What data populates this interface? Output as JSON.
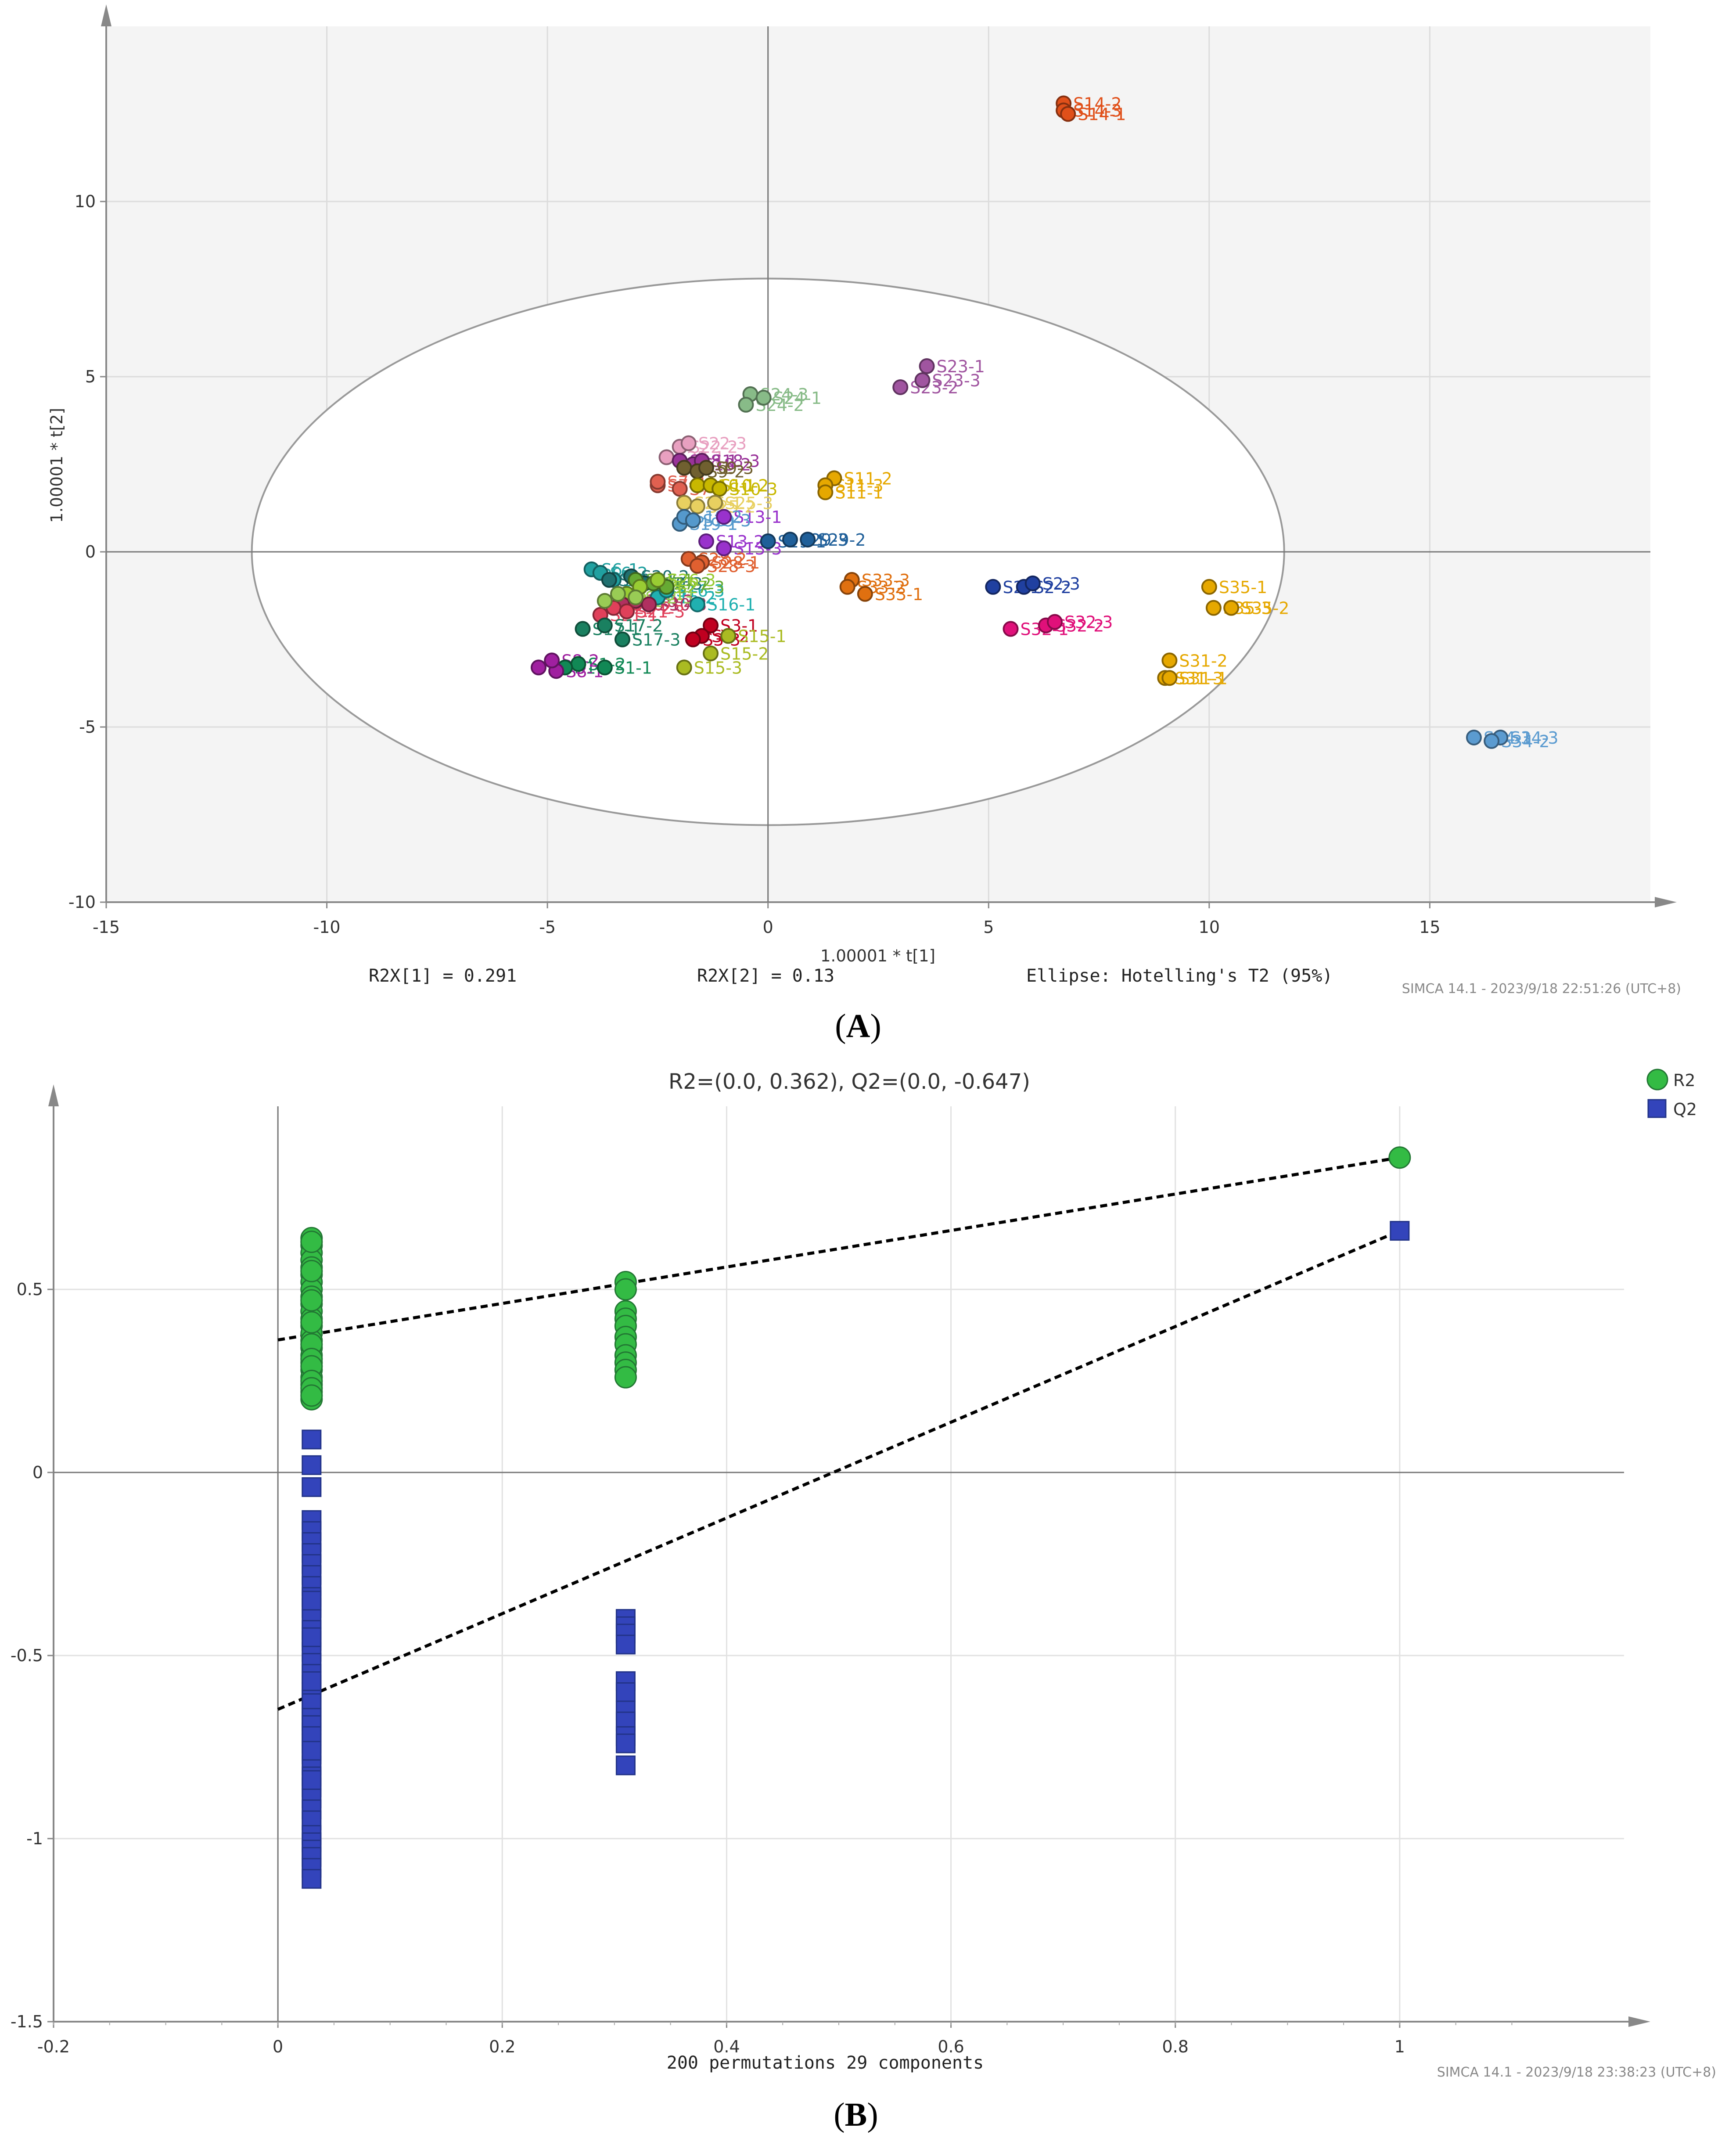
{
  "chart_data": [
    {
      "type": "scatter",
      "panel_label": "A",
      "xlabel": "1.00001 * t[1]",
      "ylabel": "1.00001 * t[2]",
      "xlim": [
        -15,
        20
      ],
      "ylim": [
        -10,
        15
      ],
      "xticks": [
        -15,
        -10,
        -5,
        0,
        5,
        10,
        15
      ],
      "yticks": [
        -10,
        -5,
        0,
        5,
        10
      ],
      "stats": [
        "R2X[1] = 0.291",
        "R2X[2] = 0.13",
        "Ellipse: Hotelling's T2 (95%)"
      ],
      "footer": "SIMCA 14.1 - 2023/9/18 22:51:26 (UTC+8)",
      "ellipse": {
        "rx": 11.7,
        "ry": 7.8
      },
      "groups": [
        {
          "name": "S14",
          "color": "#e0501a",
          "labels": [
            "S14-2",
            "S14-3",
            "S14-1"
          ],
          "points": [
            [
              6.7,
              12.8
            ],
            [
              6.7,
              12.6
            ],
            [
              6.8,
              12.5
            ]
          ]
        },
        {
          "name": "S34",
          "color": "#5b9bd0",
          "labels": [
            "S34-1",
            "S34-3",
            "S34-2"
          ],
          "points": [
            [
              16.0,
              -5.3
            ],
            [
              16.6,
              -5.3
            ],
            [
              16.4,
              -5.4
            ]
          ]
        },
        {
          "name": "S23",
          "color": "#a055a0",
          "labels": [
            "S23-1",
            "S23-3",
            "S23-2"
          ],
          "points": [
            [
              3.6,
              5.3
            ],
            [
              3.5,
              4.9
            ],
            [
              3.0,
              4.7
            ]
          ]
        },
        {
          "name": "S24",
          "color": "#88bb88",
          "labels": [
            "S24-3",
            "S24-1",
            "S24-2"
          ],
          "points": [
            [
              -0.4,
              4.5
            ],
            [
              -0.1,
              4.4
            ],
            [
              -0.5,
              4.2
            ]
          ]
        },
        {
          "name": "S11",
          "color": "#e6a800",
          "labels": [
            "S11-2",
            "S11-3",
            "S11-1"
          ],
          "points": [
            [
              1.5,
              2.1
            ],
            [
              1.3,
              1.9
            ],
            [
              1.3,
              1.7
            ]
          ]
        },
        {
          "name": "S35",
          "color": "#e6a800",
          "labels": [
            "S35-1",
            "S35-3",
            "S35-2"
          ],
          "points": [
            [
              10.0,
              -1.0
            ],
            [
              10.1,
              -1.6
            ],
            [
              10.5,
              -1.6
            ]
          ]
        },
        {
          "name": "S31",
          "color": "#e6a800",
          "labels": [
            "S31-2",
            "S31-3",
            "S31-1"
          ],
          "points": [
            [
              9.1,
              -3.1
            ],
            [
              9.0,
              -3.6
            ],
            [
              9.1,
              -3.6
            ]
          ]
        },
        {
          "name": "S33",
          "color": "#e07010",
          "labels": [
            "S33-3",
            "S33-2",
            "S33-1"
          ],
          "points": [
            [
              1.9,
              -0.8
            ],
            [
              1.8,
              -1.0
            ],
            [
              2.2,
              -1.2
            ]
          ]
        },
        {
          "name": "S2",
          "color": "#2040a0",
          "labels": [
            "S2-1",
            "S2-2",
            "S2-3"
          ],
          "points": [
            [
              5.1,
              -1.0
            ],
            [
              5.8,
              -1.0
            ],
            [
              6.0,
              -0.9
            ]
          ]
        },
        {
          "name": "S32",
          "color": "#e0107a",
          "labels": [
            "S32-1",
            "S32-2",
            "S32-3"
          ],
          "points": [
            [
              5.5,
              -2.2
            ],
            [
              6.3,
              -2.1
            ],
            [
              6.5,
              -2.0
            ]
          ]
        },
        {
          "name": "S29",
          "color": "#1f5f99",
          "labels": [
            "S29-1",
            "S29-3",
            "S29-2"
          ],
          "points": [
            [
              0.0,
              0.3
            ],
            [
              0.5,
              0.35
            ],
            [
              0.9,
              0.35
            ]
          ]
        },
        {
          "name": "S13",
          "color": "#9932cc",
          "labels": [
            "S13-1",
            "S13-2",
            "S13-3"
          ],
          "points": [
            [
              -1.0,
              1.0
            ],
            [
              -1.4,
              0.3
            ],
            [
              -1.0,
              0.1
            ]
          ]
        },
        {
          "name": "S22",
          "color": "#e8a0c0",
          "labels": [
            "S22-2",
            "S22-1",
            "S22-3"
          ],
          "points": [
            [
              -2.0,
              3.0
            ],
            [
              -2.3,
              2.7
            ],
            [
              -1.8,
              3.1
            ]
          ]
        },
        {
          "name": "S18",
          "color": "#993399",
          "labels": [
            "S18-1",
            "S18-2",
            "S18-3"
          ],
          "points": [
            [
              -2.0,
              2.6
            ],
            [
              -1.7,
              2.5
            ],
            [
              -1.5,
              2.6
            ]
          ]
        },
        {
          "name": "S9",
          "color": "#706030",
          "labels": [
            "S9-1",
            "S9-2",
            "S9-3"
          ],
          "points": [
            [
              -1.9,
              2.4
            ],
            [
              -1.6,
              2.3
            ],
            [
              -1.4,
              2.4
            ]
          ]
        },
        {
          "name": "S7",
          "color": "#e06050",
          "labels": [
            "S7-1",
            "S7-2",
            "S7-3"
          ],
          "points": [
            [
              -2.5,
              1.9
            ],
            [
              -2.5,
              2.0
            ],
            [
              -2.0,
              1.8
            ]
          ]
        },
        {
          "name": "S10",
          "color": "#c8b800",
          "labels": [
            "S10-1",
            "S10-2",
            "S10-3"
          ],
          "points": [
            [
              -1.6,
              1.9
            ],
            [
              -1.3,
              1.9
            ],
            [
              -1.1,
              1.8
            ]
          ]
        },
        {
          "name": "S25",
          "color": "#e8d060",
          "labels": [
            "S25-1",
            "S25-2",
            "S25-3"
          ],
          "points": [
            [
              -1.9,
              1.4
            ],
            [
              -1.6,
              1.3
            ],
            [
              -1.2,
              1.4
            ]
          ]
        },
        {
          "name": "S19",
          "color": "#5599cc",
          "labels": [
            "S19-1",
            "S19-2",
            "S19-3"
          ],
          "points": [
            [
              -2.0,
              0.8
            ],
            [
              -1.9,
              1.0
            ],
            [
              -1.7,
              0.9
            ]
          ]
        },
        {
          "name": "S28",
          "color": "#e06030",
          "labels": [
            "S28-1",
            "S28-2",
            "S28-3"
          ],
          "points": [
            [
              -1.5,
              -0.3
            ],
            [
              -1.8,
              -0.2
            ],
            [
              -1.6,
              -0.4
            ]
          ]
        },
        {
          "name": "S16",
          "color": "#20b0b0",
          "labels": [
            "S16-1",
            "S16-2",
            "S16-3"
          ],
          "points": [
            [
              -1.6,
              -1.5
            ],
            [
              -2.5,
              -1.3
            ],
            [
              -2.3,
              -1.1
            ]
          ]
        },
        {
          "name": "S6",
          "color": "#20a0a0",
          "labels": [
            "S6-1",
            "S6-2",
            "S6-3"
          ],
          "points": [
            [
              -4.0,
              -0.5
            ],
            [
              -3.8,
              -0.6
            ],
            [
              -3.5,
              -0.8
            ]
          ]
        },
        {
          "name": "S20",
          "color": "#207070",
          "labels": [
            "S20-1",
            "S20-2",
            "S20-3"
          ],
          "points": [
            [
              -3.6,
              -0.8
            ],
            [
              -3.1,
              -0.7
            ],
            [
              -2.8,
              -0.9
            ]
          ]
        },
        {
          "name": "S27",
          "color": "#66aa33",
          "labels": [
            "S27-1",
            "S27-2",
            "S27-3"
          ],
          "points": [
            [
              -3.0,
              -0.8
            ],
            [
              -2.6,
              -0.9
            ],
            [
              -2.3,
              -1.0
            ]
          ]
        },
        {
          "name": "S26",
          "color": "#99cc33",
          "labels": [
            "S26-1",
            "S26-2",
            "S26-3"
          ],
          "points": [
            [
              -3.2,
              -1.2
            ],
            [
              -2.9,
              -1.0
            ],
            [
              -2.5,
              -0.8
            ]
          ]
        },
        {
          "name": "S30",
          "color": "#b03060",
          "labels": [
            "S30-1",
            "S30-2",
            "S30-3"
          ],
          "points": [
            [
              -3.3,
              -1.5
            ],
            [
              -3.0,
              -1.4
            ],
            [
              -2.7,
              -1.5
            ]
          ]
        },
        {
          "name": "S21",
          "color": "#e0405a",
          "labels": [
            "S21-1",
            "S21-2",
            "S21-3"
          ],
          "points": [
            [
              -3.8,
              -1.8
            ],
            [
              -3.5,
              -1.6
            ],
            [
              -3.2,
              -1.7
            ]
          ]
        },
        {
          "name": "S12",
          "color": "#99cc55",
          "labels": [
            "S12-1",
            "S12-2",
            "S12-3"
          ],
          "points": [
            [
              -3.7,
              -1.4
            ],
            [
              -3.4,
              -1.2
            ],
            [
              -3.0,
              -1.3
            ]
          ]
        },
        {
          "name": "S17",
          "color": "#1a8060",
          "labels": [
            "S17-1",
            "S17-2",
            "S17-3"
          ],
          "points": [
            [
              -4.2,
              -2.2
            ],
            [
              -3.7,
              -2.1
            ],
            [
              -3.3,
              -2.5
            ]
          ]
        },
        {
          "name": "S1",
          "color": "#118855",
          "labels": [
            "S1-1",
            "S1-2",
            "S1-3"
          ],
          "points": [
            [
              -3.7,
              -3.3
            ],
            [
              -4.3,
              -3.2
            ],
            [
              -4.6,
              -3.3
            ]
          ]
        },
        {
          "name": "S8",
          "color": "#a020a0",
          "labels": [
            "S8-1",
            "S8-2",
            "S8-3"
          ],
          "points": [
            [
              -4.8,
              -3.4
            ],
            [
              -4.9,
              -3.1
            ],
            [
              -5.2,
              -3.3
            ]
          ]
        },
        {
          "name": "S3",
          "color": "#c00020",
          "labels": [
            "S3-1",
            "S3-2",
            "S3-3"
          ],
          "points": [
            [
              -1.3,
              -2.1
            ],
            [
              -1.5,
              -2.4
            ],
            [
              -1.7,
              -2.5
            ]
          ]
        },
        {
          "name": "S15",
          "color": "#aabb22",
          "labels": [
            "S15-1",
            "S15-2",
            "S15-3"
          ],
          "points": [
            [
              -0.9,
              -2.4
            ],
            [
              -1.3,
              -2.9
            ],
            [
              -1.9,
              -3.3
            ]
          ]
        }
      ]
    },
    {
      "type": "scatter",
      "panel_label": "B",
      "title": "R2=(0.0, 0.362), Q2=(0.0, -0.647)",
      "xlabel": "200 permutations 29 components",
      "xlim": [
        -0.2,
        1.2
      ],
      "ylim": [
        -1.5,
        1.0
      ],
      "xticks": [
        -0.2,
        0,
        0.2,
        0.4,
        0.6,
        0.8,
        1
      ],
      "xtick_labels": [
        "-0.2",
        "0",
        "0.2",
        "0.4",
        "0.6",
        "0.8",
        "1"
      ],
      "yticks": [
        -1.5,
        -1,
        -0.5,
        0,
        0.5
      ],
      "ytick_labels": [
        "-1.5",
        "-1",
        "-0.5",
        "0",
        "0.5"
      ],
      "footer": "SIMCA 14.1 - 2023/9/18 23:38:23 (UTC+8)",
      "legend": [
        {
          "name": "R2",
          "marker": "circle",
          "color": "#33bb44"
        },
        {
          "name": "Q2",
          "marker": "square",
          "color": "#3344bb"
        }
      ],
      "r2_x": [
        0.03,
        0.03,
        0.03,
        0.03,
        0.03,
        0.03,
        0.03,
        0.03,
        0.03,
        0.03,
        0.03,
        0.03,
        0.03,
        0.03,
        0.03,
        0.03,
        0.03,
        0.03,
        0.03,
        0.03,
        0.03,
        0.03,
        0.03,
        0.03,
        0.03,
        0.03,
        0.03,
        0.03,
        0.03,
        0.03,
        0.03,
        0.03,
        0.03,
        0.31,
        0.31,
        0.31,
        0.31,
        0.31,
        0.31,
        0.31,
        0.31,
        0.31,
        0.31,
        0.31,
        1.0
      ],
      "r2_y": [
        0.64,
        0.62,
        0.6,
        0.58,
        0.56,
        0.54,
        0.52,
        0.5,
        0.48,
        0.46,
        0.44,
        0.42,
        0.4,
        0.38,
        0.36,
        0.34,
        0.32,
        0.3,
        0.28,
        0.26,
        0.24,
        0.22,
        0.2,
        0.63,
        0.55,
        0.47,
        0.41,
        0.35,
        0.31,
        0.29,
        0.25,
        0.23,
        0.21,
        0.52,
        0.5,
        0.44,
        0.42,
        0.4,
        0.37,
        0.35,
        0.32,
        0.3,
        0.28,
        0.26,
        0.86
      ],
      "q2_x": [
        0.03,
        0.03,
        0.03,
        0.03,
        0.03,
        0.03,
        0.03,
        0.03,
        0.03,
        0.03,
        0.03,
        0.03,
        0.03,
        0.03,
        0.03,
        0.03,
        0.03,
        0.03,
        0.03,
        0.03,
        0.03,
        0.03,
        0.03,
        0.03,
        0.03,
        0.03,
        0.03,
        0.03,
        0.03,
        0.03,
        0.03,
        0.03,
        0.03,
        0.03,
        0.03,
        0.03,
        0.03,
        0.03,
        0.03,
        0.03,
        0.03,
        0.03,
        0.03,
        0.03,
        0.03,
        0.03,
        0.03,
        0.31,
        0.31,
        0.31,
        0.31,
        0.31,
        0.31,
        0.31,
        0.31,
        0.31,
        0.31,
        0.31,
        1.0
      ],
      "q2_y": [
        0.09,
        0.02,
        -0.04,
        -0.13,
        -0.16,
        -0.19,
        -0.22,
        -0.25,
        -0.28,
        -0.31,
        -0.34,
        -0.37,
        -0.4,
        -0.43,
        -0.46,
        -0.49,
        -0.52,
        -0.55,
        -0.58,
        -0.6,
        -0.62,
        -0.65,
        -0.68,
        -0.71,
        -0.74,
        -0.77,
        -0.8,
        -0.83,
        -0.86,
        -0.89,
        -0.92,
        -0.95,
        -0.99,
        -1.01,
        -1.03,
        -1.05,
        -1.08,
        -1.11,
        -0.35,
        -0.45,
        -0.57,
        -0.63,
        -0.67,
        -0.69,
        -0.72,
        -0.76,
        -0.84,
        -0.4,
        -0.42,
        -0.44,
        -0.47,
        -0.57,
        -0.6,
        -0.65,
        -0.68,
        -0.72,
        -0.74,
        -0.8,
        0.66
      ],
      "r2_line": {
        "intercept": 0.362,
        "slope_point": [
          1.0,
          0.86
        ]
      },
      "q2_line": {
        "intercept": -0.647,
        "slope_point": [
          1.0,
          0.66
        ]
      }
    }
  ]
}
